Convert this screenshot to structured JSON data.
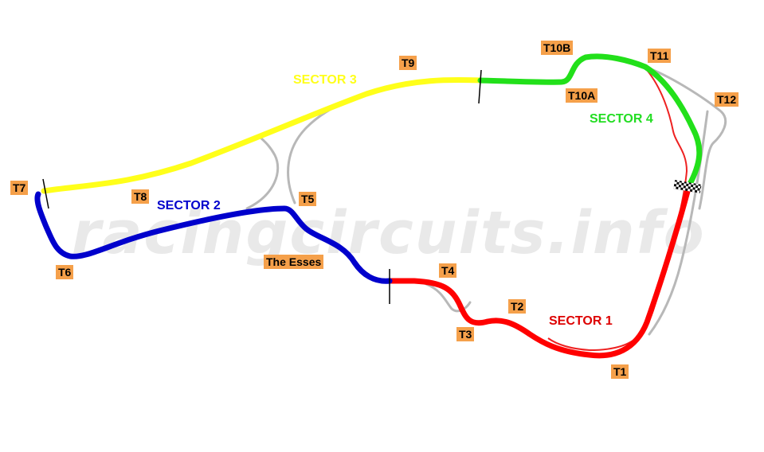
{
  "watermark": "racingcircuits.info",
  "colors": {
    "sector1": "#ff0000",
    "sector2": "#0000cc",
    "sector3": "#ffff1a",
    "sector4": "#22e01a",
    "alt_track": "#b8b8b8",
    "label_bg": "#f5a04a"
  },
  "sectors": [
    {
      "label": "SECTOR 1",
      "color": "#dd0000"
    },
    {
      "label": "SECTOR 2",
      "color": "#0000cc"
    },
    {
      "label": "SECTOR 3",
      "color": "#ffff1a"
    },
    {
      "label": "SECTOR 4",
      "color": "#22dd22"
    }
  ],
  "turns": {
    "t1": "T1",
    "t2": "T2",
    "t3": "T3",
    "t4": "T4",
    "esses": "The Esses",
    "t5": "T5",
    "t6": "T6",
    "t7": "T7",
    "t8": "T8",
    "t9": "T9",
    "t10a": "T10A",
    "t10b": "T10B",
    "t11": "T11",
    "t12": "T12"
  },
  "icons": {
    "finish": "checkered-flag-icon"
  }
}
